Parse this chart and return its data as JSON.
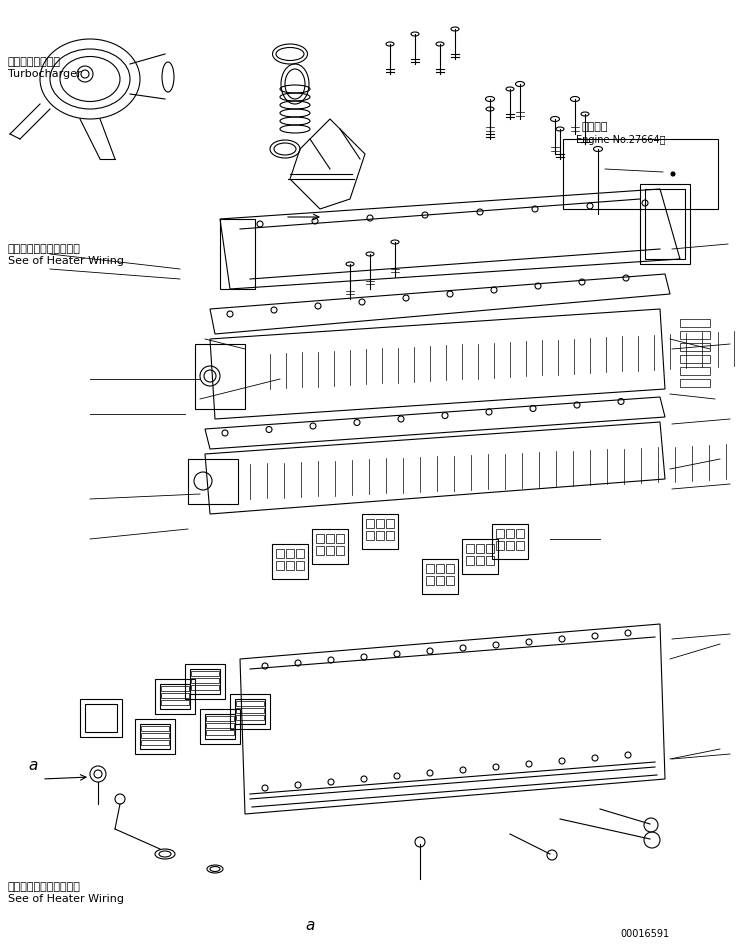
{
  "title": "",
  "background_color": "#ffffff",
  "line_color": "#000000",
  "text_color": "#000000",
  "top_left_label_jp": "ヒータワイヤリング参照",
  "top_left_label_en": "See of Heater Wiring",
  "bottom_left_label_jp": "ヒータワイヤリング参照",
  "bottom_left_label_en": "See of Heater Wiring",
  "turbocharger_label_jp": "ターボチャージャ",
  "turbocharger_label_en": "Turbocharger",
  "engine_label": "適用号機",
  "engine_no": "Engine No.27664～",
  "part_no": "00016591",
  "note_label_a": "a",
  "font_size_small": 7,
  "font_size_medium": 8,
  "font_size_large": 9
}
